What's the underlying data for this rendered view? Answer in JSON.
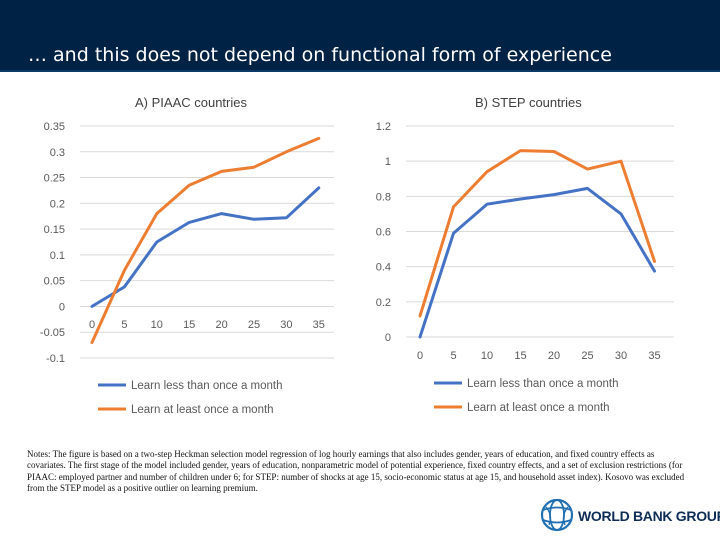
{
  "slide": {
    "title": "… and this does not depend on functional form of experience",
    "notes": "Notes: The figure is based on a two-step Heckman selection model regression of log hourly earnings that also includes gender, years of education, and fixed country effects as covariates. The first stage of the model included gender, years of education, nonparametric model of potential experience, fixed country effects, and a set of exclusion restrictions (for PIAAC: employed partner and number of children under 6; for STEP: number of shocks at age 15, socio-economic status at age 15, and household asset index). Kosovo was excluded from the STEP model as a positive outlier on learning premium.",
    "logo_text": "WORLD BANK GROUP"
  },
  "colors": {
    "blue": "#4472C4",
    "orange": "#ED7D31",
    "grid": "#D9D9D9",
    "tick_text": "#595959"
  },
  "chart_data": [
    {
      "type": "line",
      "title": "A)   PIAAC countries",
      "categories": [
        "0",
        "5",
        "10",
        "15",
        "20",
        "25",
        "30",
        "35"
      ],
      "ylim": [
        -0.1,
        0.35
      ],
      "yticks": [
        "0.35",
        "0.3",
        "0.25",
        "0.2",
        "0.15",
        "0.1",
        "0.05",
        "0",
        "-0.05",
        "-0.1"
      ],
      "grid": true,
      "legend": "bottom-left",
      "series": [
        {
          "name": "Learn less than once a month",
          "color": "#4472C4",
          "values": [
            0.0,
            0.038,
            0.125,
            0.163,
            0.18,
            0.169,
            0.172,
            0.23
          ]
        },
        {
          "name": "Learn at least once a month",
          "color": "#ED7D31",
          "values": [
            -0.07,
            0.07,
            0.18,
            0.235,
            0.262,
            0.27,
            0.3,
            0.326
          ]
        }
      ]
    },
    {
      "type": "line",
      "title": "B)   STEP countries",
      "categories": [
        "0",
        "5",
        "10",
        "15",
        "20",
        "25",
        "30",
        "35"
      ],
      "ylim": [
        0,
        1.2
      ],
      "yticks": [
        "1.2",
        "1",
        "0.8",
        "0.6",
        "0.4",
        "0.2",
        "0"
      ],
      "grid": true,
      "legend": "bottom-left",
      "series": [
        {
          "name": "Learn less than once a month",
          "color": "#4472C4",
          "values": [
            0.0,
            0.59,
            0.755,
            0.785,
            0.81,
            0.845,
            0.7,
            0.375
          ]
        },
        {
          "name": "Learn at least once a month",
          "color": "#ED7D31",
          "values": [
            0.12,
            0.74,
            0.94,
            1.06,
            1.055,
            0.955,
            1.0,
            0.43
          ]
        }
      ]
    }
  ]
}
